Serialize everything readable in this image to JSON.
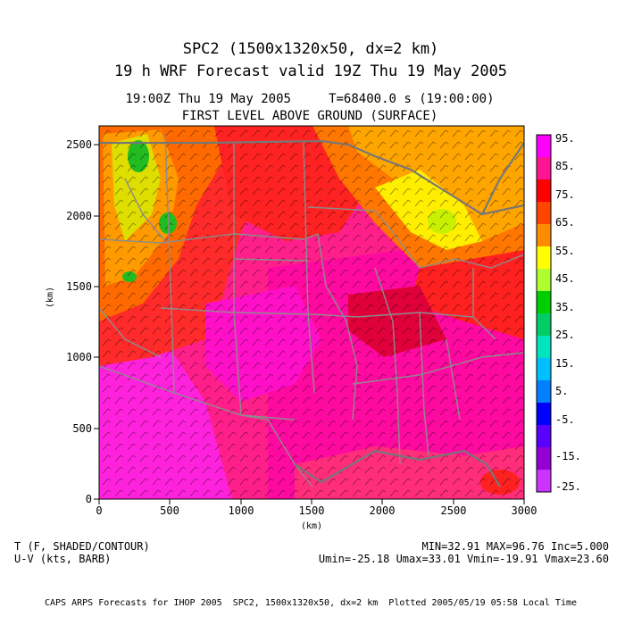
{
  "header": {
    "line1": "SPC2 (1500x1320x50, dx=2 km)",
    "line2": "19 h WRF Forecast valid 19Z Thu 19 May 2005",
    "time_line": "19:00Z Thu 19 May 2005     T=68400.0 s (19:00:00)",
    "level_line": "FIRST LEVEL ABOVE GROUND (SURFACE)"
  },
  "axes": {
    "xlabel": "(km)",
    "ylabel": "(km)",
    "x_ticks": [
      "0",
      "500",
      "1000",
      "1500",
      "2000",
      "2500",
      "3000"
    ],
    "y_ticks": [
      "0",
      "500",
      "1000",
      "1500",
      "2000",
      "2500"
    ],
    "x_range": [
      0,
      3000
    ],
    "y_range": [
      0,
      2640
    ]
  },
  "colorbar": {
    "labels": [
      "95.",
      "85.",
      "75.",
      "65.",
      "55.",
      "45.",
      "35.",
      "25.",
      "15.",
      "5.",
      "-5.",
      "-15.",
      "-25."
    ],
    "colors_top_to_bottom": [
      "#ff00ff",
      "#ff1493",
      "#ff0000",
      "#ff4500",
      "#ff8c00",
      "#ffff00",
      "#adff2f",
      "#00cd00",
      "#00cd66",
      "#00e5c0",
      "#00bfff",
      "#0080ff",
      "#0000ff",
      "#5a00ff",
      "#9400d3",
      "#cc33ff",
      "#ff00ff"
    ]
  },
  "footer": {
    "left_line1": "T (F, SHADED/CONTOUR)",
    "left_line2": "U-V (kts, BARB)",
    "right_line1": "MIN=32.91 MAX=96.76 Inc=5.000",
    "right_line2": "Umin=-25.18 Umax=33.01 Vmin=-19.91 Vmax=23.60",
    "bottom": "CAPS ARPS Forecasts for IHOP 2005  SPC2, 1500x1320x50, dx=2 km  Plotted 2005/05/19 05:58 Local Time"
  },
  "map": {
    "field": "surface temperature (F)",
    "min": 32.91,
    "max": 96.76,
    "contour_interval": 5.0,
    "colors": {
      "hot_magenta": "#ff00aa",
      "pink": "#ff1493",
      "red": "#ff0000",
      "orange_red": "#ff4500",
      "orange": "#ff8c00",
      "yellow": "#ffff00",
      "green": "#00cd00",
      "boundary_gray": "#8c8c8c"
    }
  }
}
